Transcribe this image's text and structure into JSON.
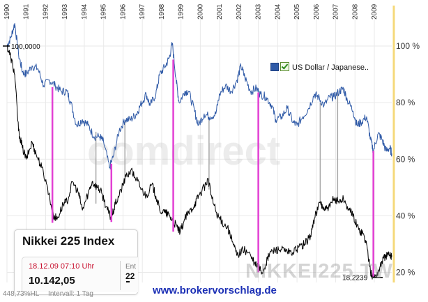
{
  "chart_data": {
    "type": "line",
    "x_ticks": [
      "1990",
      "1991",
      "1992",
      "1993",
      "1994",
      "1995",
      "1996",
      "1997",
      "1998",
      "1999",
      "2000",
      "2001",
      "2002",
      "2003",
      "2004",
      "2005",
      "2006",
      "2007",
      "2008",
      "2009"
    ],
    "y_ticks": [
      "100 %",
      "80 %",
      "60 %",
      "40 %",
      "20 %"
    ],
    "ylim": [
      15,
      110
    ],
    "xlim": [
      1990,
      2009.9
    ],
    "grid": true,
    "series": [
      {
        "name": "US Dollar / Japanese..",
        "color": "#2f5aa7",
        "points": [
          [
            1990.0,
            100
          ],
          [
            1990.2,
            103
          ],
          [
            1990.4,
            108
          ],
          [
            1990.6,
            97
          ],
          [
            1990.8,
            91
          ],
          [
            1991.0,
            90
          ],
          [
            1991.3,
            93
          ],
          [
            1991.6,
            92
          ],
          [
            1991.9,
            86
          ],
          [
            1992.2,
            88
          ],
          [
            1992.5,
            86
          ],
          [
            1992.8,
            84
          ],
          [
            1993.1,
            84
          ],
          [
            1993.3,
            80
          ],
          [
            1993.6,
            72
          ],
          [
            1993.9,
            74
          ],
          [
            1994.2,
            72
          ],
          [
            1994.5,
            68
          ],
          [
            1994.8,
            68
          ],
          [
            1995.0,
            66
          ],
          [
            1995.3,
            57
          ],
          [
            1995.5,
            61
          ],
          [
            1995.8,
            70
          ],
          [
            1996.1,
            74
          ],
          [
            1996.4,
            74
          ],
          [
            1996.7,
            76
          ],
          [
            1996.9,
            79
          ],
          [
            1997.2,
            83
          ],
          [
            1997.4,
            79
          ],
          [
            1997.7,
            83
          ],
          [
            1997.9,
            90
          ],
          [
            1998.2,
            93
          ],
          [
            1998.4,
            96
          ],
          [
            1998.55,
            101
          ],
          [
            1998.75,
            88
          ],
          [
            1998.9,
            80
          ],
          [
            1999.2,
            84
          ],
          [
            1999.4,
            84
          ],
          [
            1999.7,
            77
          ],
          [
            1999.9,
            72
          ],
          [
            2000.2,
            76
          ],
          [
            2000.5,
            75
          ],
          [
            2000.8,
            76
          ],
          [
            2001.0,
            83
          ],
          [
            2001.3,
            86
          ],
          [
            2001.6,
            84
          ],
          [
            2001.9,
            88
          ],
          [
            2002.1,
            93
          ],
          [
            2002.3,
            89
          ],
          [
            2002.6,
            84
          ],
          [
            2002.9,
            85
          ],
          [
            2003.1,
            83
          ],
          [
            2003.4,
            82
          ],
          [
            2003.7,
            79
          ],
          [
            2003.9,
            74
          ],
          [
            2004.2,
            75
          ],
          [
            2004.5,
            78
          ],
          [
            2004.8,
            73
          ],
          [
            2005.0,
            72
          ],
          [
            2005.3,
            75
          ],
          [
            2005.6,
            78
          ],
          [
            2005.9,
            83
          ],
          [
            2006.1,
            82
          ],
          [
            2006.4,
            79
          ],
          [
            2006.7,
            82
          ],
          [
            2006.9,
            82
          ],
          [
            2007.2,
            84
          ],
          [
            2007.4,
            85
          ],
          [
            2007.6,
            81
          ],
          [
            2007.9,
            77
          ],
          [
            2008.1,
            72
          ],
          [
            2008.3,
            73
          ],
          [
            2008.6,
            75
          ],
          [
            2008.8,
            67
          ],
          [
            2008.95,
            63
          ],
          [
            2009.2,
            69
          ],
          [
            2009.4,
            67
          ],
          [
            2009.6,
            63
          ],
          [
            2009.8,
            64
          ],
          [
            2009.9,
            62
          ]
        ]
      },
      {
        "name": "Nikkei 225 Index",
        "color": "#000000",
        "points": [
          [
            1990.0,
            100
          ],
          [
            1990.2,
            96
          ],
          [
            1990.4,
            90
          ],
          [
            1990.6,
            70
          ],
          [
            1990.8,
            64
          ],
          [
            1991.0,
            60
          ],
          [
            1991.3,
            66
          ],
          [
            1991.5,
            62
          ],
          [
            1991.8,
            57
          ],
          [
            1992.1,
            50
          ],
          [
            1992.4,
            40
          ],
          [
            1992.6,
            39
          ],
          [
            1992.9,
            44
          ],
          [
            1993.1,
            45
          ],
          [
            1993.4,
            52
          ],
          [
            1993.7,
            48
          ],
          [
            1993.9,
            42
          ],
          [
            1994.2,
            48
          ],
          [
            1994.4,
            52
          ],
          [
            1994.7,
            50
          ],
          [
            1994.9,
            48
          ],
          [
            1995.2,
            42
          ],
          [
            1995.4,
            39
          ],
          [
            1995.6,
            44
          ],
          [
            1995.9,
            49
          ],
          [
            1996.1,
            53
          ],
          [
            1996.4,
            56
          ],
          [
            1996.7,
            53
          ],
          [
            1996.9,
            50
          ],
          [
            1997.2,
            47
          ],
          [
            1997.5,
            51
          ],
          [
            1997.7,
            47
          ],
          [
            1997.9,
            42
          ],
          [
            1998.2,
            41
          ],
          [
            1998.4,
            40
          ],
          [
            1998.6,
            38
          ],
          [
            1998.8,
            36
          ],
          [
            1998.95,
            34
          ],
          [
            1999.2,
            39
          ],
          [
            1999.4,
            41
          ],
          [
            1999.7,
            44
          ],
          [
            1999.9,
            47
          ],
          [
            2000.2,
            50
          ],
          [
            2000.4,
            53
          ],
          [
            2000.6,
            46
          ],
          [
            2000.9,
            40
          ],
          [
            2001.1,
            38
          ],
          [
            2001.4,
            36
          ],
          [
            2001.7,
            30
          ],
          [
            2001.9,
            26
          ],
          [
            2002.2,
            28
          ],
          [
            2002.5,
            27
          ],
          [
            2002.8,
            23
          ],
          [
            2003.0,
            22
          ],
          [
            2003.2,
            20
          ],
          [
            2003.4,
            23
          ],
          [
            2003.6,
            27
          ],
          [
            2003.9,
            28
          ],
          [
            2004.2,
            28
          ],
          [
            2004.5,
            27
          ],
          [
            2004.8,
            27
          ],
          [
            2005.1,
            29
          ],
          [
            2005.4,
            30
          ],
          [
            2005.7,
            33
          ],
          [
            2005.9,
            39
          ],
          [
            2006.2,
            45
          ],
          [
            2006.4,
            42
          ],
          [
            2006.7,
            43
          ],
          [
            2006.9,
            46
          ],
          [
            2007.2,
            45
          ],
          [
            2007.4,
            46
          ],
          [
            2007.7,
            42
          ],
          [
            2007.9,
            40
          ],
          [
            2008.2,
            35
          ],
          [
            2008.4,
            34
          ],
          [
            2008.6,
            30
          ],
          [
            2008.8,
            20
          ],
          [
            2008.95,
            18.2239
          ],
          [
            2009.2,
            20
          ],
          [
            2009.4,
            24
          ],
          [
            2009.6,
            26
          ],
          [
            2009.8,
            26
          ],
          [
            2009.9,
            26
          ]
        ]
      }
    ],
    "annotations": [
      {
        "text": "100,0000",
        "x": 1990.0,
        "y": 100
      },
      {
        "text": "18,2239",
        "x": 2009.0,
        "y": 18.2239
      }
    ],
    "highlight_lines": [
      {
        "x": 1992.35,
        "y1": 37.5,
        "y2": 85.5,
        "color": "#e23fd3"
      },
      {
        "x": 1995.4,
        "y1": 37.8,
        "y2": 58.4,
        "color": "#e23fd3"
      },
      {
        "x": 1998.6,
        "y1": 34.4,
        "y2": 95.2,
        "color": "#e23fd3"
      },
      {
        "x": 2003.0,
        "y1": 20.0,
        "y2": 83.6,
        "color": "#e23fd3"
      },
      {
        "x": 2008.95,
        "y1": 18.5,
        "y2": 63.0,
        "color": "#e23fd3"
      },
      {
        "x": 1994.6,
        "y1": 44.3,
        "y2": 69.7,
        "color": "#a8a8a8"
      },
      {
        "x": 1996.1,
        "y1": 53.5,
        "y2": 73.4,
        "color": "#a8a8a8"
      },
      {
        "x": 2000.45,
        "y1": 49.3,
        "y2": 74.2,
        "color": "#a8a8a8"
      },
      {
        "x": 2006.2,
        "y1": 44.5,
        "y2": 80.0,
        "color": "#a8a8a8"
      },
      {
        "x": 2007.1,
        "y1": 45.5,
        "y2": 83.6,
        "color": "#a8a8a8"
      }
    ]
  },
  "legend": {
    "label": "US Dollar / Japanese.."
  },
  "info": {
    "title": "Nikkei 225 Index",
    "date": "18.12.09  07:10 Uhr",
    "value": "10.142,05",
    "ent_label": "Ent",
    "ent_value": "22"
  },
  "footer": {
    "scale_text": "448,73%HL",
    "interval_text": "Intervall: 1 Tag",
    "url": "www.brokervorschlag.de"
  },
  "watermarks": {
    "comdirect": "comdirect",
    "nikkei": "NIKKEI225.TW"
  },
  "colors": {
    "usd_jpy": "#2f5aa7",
    "nikkei": "#000000",
    "highlight": "#e23fd3",
    "connector": "#a8a8a8",
    "y_axis_line": "#f5d97a",
    "url": "#1b2fb5"
  }
}
